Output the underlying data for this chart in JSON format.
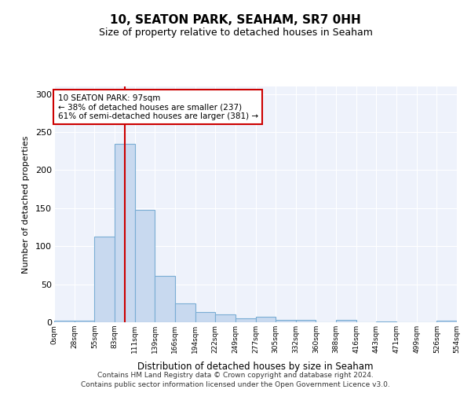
{
  "title": "10, SEATON PARK, SEAHAM, SR7 0HH",
  "subtitle": "Size of property relative to detached houses in Seaham",
  "xlabel": "Distribution of detached houses by size in Seaham",
  "ylabel": "Number of detached properties",
  "bar_color": "#c8d9ef",
  "bar_edge_color": "#7aadd4",
  "background_color": "#ffffff",
  "plot_bg_color": "#eef2fb",
  "grid_color": "#ffffff",
  "property_line_value": 97,
  "property_line_color": "#cc0000",
  "annotation_text": "10 SEATON PARK: 97sqm\n← 38% of detached houses are smaller (237)\n61% of semi-detached houses are larger (381) →",
  "annotation_box_color": "#ffffff",
  "annotation_box_edge": "#cc0000",
  "footer_line1": "Contains HM Land Registry data © Crown copyright and database right 2024.",
  "footer_line2": "Contains public sector information licensed under the Open Government Licence v3.0.",
  "bin_edges": [
    0,
    27.5,
    55,
    82.5,
    110,
    137.5,
    165,
    192.5,
    220,
    247.5,
    275,
    302.5,
    330,
    357.5,
    385,
    412.5,
    440,
    467.5,
    495,
    522.5,
    550
  ],
  "bin_labels": [
    "0sqm",
    "28sqm",
    "55sqm",
    "83sqm",
    "111sqm",
    "139sqm",
    "166sqm",
    "194sqm",
    "222sqm",
    "249sqm",
    "277sqm",
    "305sqm",
    "332sqm",
    "360sqm",
    "388sqm",
    "416sqm",
    "443sqm",
    "471sqm",
    "499sqm",
    "526sqm",
    "554sqm"
  ],
  "bar_heights": [
    2,
    2,
    113,
    235,
    148,
    61,
    25,
    13,
    10,
    5,
    7,
    3,
    3,
    0,
    3,
    0,
    1,
    0,
    0,
    2
  ],
  "ylim": [
    0,
    310
  ],
  "yticks": [
    0,
    50,
    100,
    150,
    200,
    250,
    300
  ]
}
